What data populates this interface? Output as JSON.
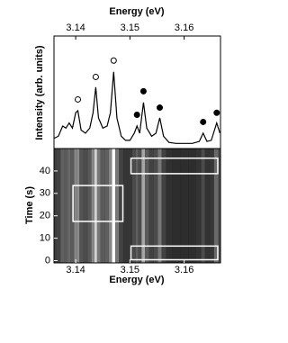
{
  "chart_data": {
    "type": "spectrum-image",
    "x_label_top": "Energy (eV)",
    "x_label_bottom": "Energy (eV)",
    "y_label_top": "Intensity (arb. units)",
    "y_label_bottom": "Time (s)",
    "xlim": [
      3.136,
      3.1667
    ],
    "xticks": [
      3.14,
      3.15,
      3.16
    ],
    "ylim": [
      0,
      1.1
    ],
    "time_lim": [
      -1,
      50
    ],
    "time_ticks": [
      0,
      10,
      20,
      30,
      40
    ],
    "x": [
      3.136,
      3.1368,
      3.1376,
      3.1382,
      3.1388,
      3.1394,
      3.14,
      3.1404,
      3.141,
      3.1418,
      3.1426,
      3.1432,
      3.1437,
      3.1442,
      3.145,
      3.1458,
      3.1464,
      3.147,
      3.1476,
      3.1484,
      3.1492,
      3.15,
      3.1508,
      3.1513,
      3.1518,
      3.1525,
      3.1531,
      3.154,
      3.1548,
      3.1555,
      3.1562,
      3.1572,
      3.1585,
      3.16,
      3.1615,
      3.1628,
      3.1635,
      3.1642,
      3.165,
      3.166,
      3.1666
    ],
    "values": [
      0.1,
      0.12,
      0.22,
      0.2,
      0.25,
      0.2,
      0.35,
      0.37,
      0.18,
      0.15,
      0.2,
      0.35,
      0.6,
      0.3,
      0.2,
      0.22,
      0.35,
      0.75,
      0.3,
      0.12,
      0.08,
      0.08,
      0.15,
      0.22,
      0.15,
      0.45,
      0.2,
      0.12,
      0.15,
      0.3,
      0.12,
      0.06,
      0.05,
      0.05,
      0.05,
      0.07,
      0.15,
      0.07,
      0.08,
      0.25,
      0.15
    ],
    "markers": [
      {
        "x": 3.1404,
        "y": 0.48,
        "filled": false
      },
      {
        "x": 3.1437,
        "y": 0.7,
        "filled": false
      },
      {
        "x": 3.147,
        "y": 0.86,
        "filled": false
      },
      {
        "x": 3.1513,
        "y": 0.33,
        "filled": true
      },
      {
        "x": 3.1525,
        "y": 0.56,
        "filled": true
      },
      {
        "x": 3.1555,
        "y": 0.4,
        "filled": true
      },
      {
        "x": 3.1635,
        "y": 0.26,
        "filled": true
      },
      {
        "x": 3.166,
        "y": 0.35,
        "filled": true
      }
    ],
    "boxes": [
      {
        "x": [
          3.1395,
          3.1487
        ],
        "t": [
          17.5,
          33.5
        ]
      },
      {
        "x": [
          3.1502,
          3.1662
        ],
        "t": [
          38.8,
          45.7
        ]
      },
      {
        "x": [
          3.1502,
          3.1662
        ],
        "t": [
          0.4,
          6.5
        ]
      }
    ]
  }
}
